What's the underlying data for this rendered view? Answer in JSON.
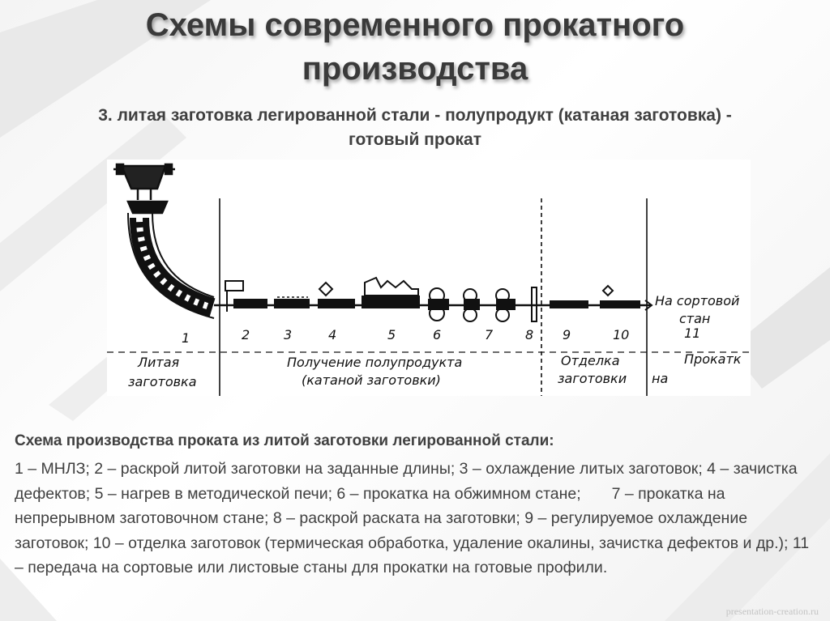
{
  "slide": {
    "title_line1": "Схемы современного прокатного",
    "title_line2": "производства",
    "subtitle_line1": "3. литая заготовка легированной стали - полупродукт (катаная заготовка) -",
    "subtitle_line2": "готовый прокат",
    "caption": "Схема производства проката из литой заготовки легированной стали:",
    "body": "1 – МНЛЗ; 2 – раскрой литой заготовки на заданные длины; 3 – охлаждение литых заготовок; 4 – зачистка дефектов; 5 – нагрев в методической печи; 6 – прокатка на обжимном стане;       7 – прокатка на непрерывном заготовочном стане; 8 – раскрой раската на заготовки; 9 – регулируемое охлаждение заготовок; 10 – отделка заготовок (термическая обработка, удаление окалины, зачистка дефектов и др.); 11 – передача на сортовые или листовые станы для прокатки на готовые профили.",
    "watermark": "presentation-creation.ru"
  },
  "figure": {
    "numbers": [
      "1",
      "2",
      "3",
      "4",
      "5",
      "6",
      "7",
      "8",
      "9",
      "10",
      "11"
    ],
    "label_cast_1": "Литая",
    "label_cast_2": "заготовка",
    "label_semi_1": "Получение полупродукта",
    "label_semi_2": "(катаной заготовки)",
    "label_finish_1": "Отделка",
    "label_finish_2": "заготовки",
    "label_mill_1": "На сортовой",
    "label_mill_2": "стан",
    "label_product": "Прокатк",
    "label_product_prefix": "на"
  }
}
